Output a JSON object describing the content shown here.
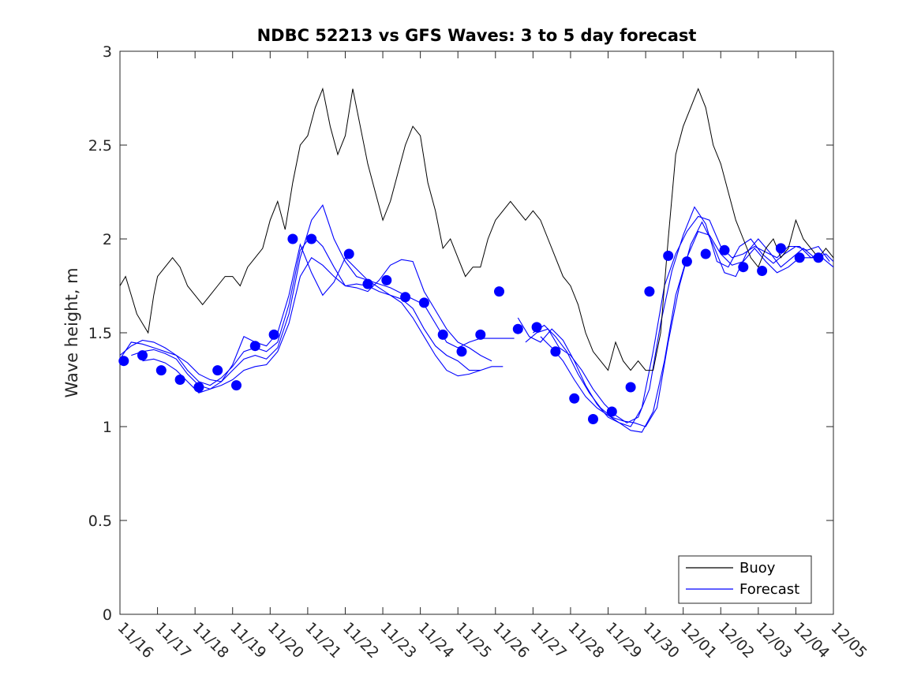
{
  "chart_data": {
    "type": "line",
    "title": "NDBC 52213 vs GFS Waves: 3 to 5 day forecast",
    "xlabel": "",
    "ylabel": "Wave height, m",
    "xlim": [
      0,
      19
    ],
    "ylim": [
      0,
      3
    ],
    "yticks": [
      0,
      0.5,
      1,
      1.5,
      2,
      2.5,
      3
    ],
    "ytick_labels": [
      "0",
      "0.5",
      "1",
      "1.5",
      "2",
      "2.5",
      "3"
    ],
    "x_tick_labels": [
      "11/16",
      "11/17",
      "11/18",
      "11/19",
      "11/20",
      "11/21",
      "11/22",
      "11/23",
      "11/24",
      "11/25",
      "11/26",
      "11/27",
      "11/28",
      "11/29",
      "11/30",
      "12/01",
      "12/02",
      "12/03",
      "12/04",
      "12/05"
    ],
    "legend": {
      "position": "bottom-right",
      "entries": [
        "Buoy",
        "Forecast"
      ]
    },
    "colors": {
      "buoy": "#000000",
      "forecast": "#0000ff"
    },
    "series": [
      {
        "name": "Buoy",
        "x": [
          0,
          0.15,
          0.3,
          0.45,
          0.6,
          0.75,
          0.9,
          1.0,
          1.2,
          1.4,
          1.6,
          1.8,
          2.0,
          2.2,
          2.4,
          2.6,
          2.8,
          3.0,
          3.2,
          3.4,
          3.6,
          3.8,
          4.0,
          4.2,
          4.4,
          4.6,
          4.8,
          5.0,
          5.2,
          5.4,
          5.6,
          5.8,
          6.0,
          6.2,
          6.4,
          6.6,
          6.8,
          7.0,
          7.2,
          7.4,
          7.6,
          7.8,
          8.0,
          8.2,
          8.4,
          8.6,
          8.8,
          9.0,
          9.2,
          9.4,
          9.6,
          9.8,
          10.0,
          10.2,
          10.4,
          10.6,
          10.8,
          11.0,
          11.2,
          11.4,
          11.6,
          11.8,
          12.0,
          12.2,
          12.4,
          12.6,
          12.8,
          13.0,
          13.2,
          13.4,
          13.6,
          13.8,
          14.0,
          14.2,
          14.4,
          14.6,
          14.8,
          15.0,
          15.2,
          15.4,
          15.6,
          15.8,
          16.0,
          16.2,
          16.4,
          16.6,
          16.8,
          17.0,
          17.2,
          17.4,
          17.6,
          17.8,
          18.0,
          18.2,
          18.4,
          18.6,
          18.8,
          19.0
        ],
        "values": [
          1.75,
          1.8,
          1.7,
          1.6,
          1.55,
          1.5,
          1.7,
          1.8,
          1.85,
          1.9,
          1.85,
          1.75,
          1.7,
          1.65,
          1.7,
          1.75,
          1.8,
          1.8,
          1.75,
          1.85,
          1.9,
          1.95,
          2.1,
          2.2,
          2.05,
          2.3,
          2.5,
          2.55,
          2.7,
          2.8,
          2.6,
          2.45,
          2.55,
          2.8,
          2.6,
          2.4,
          2.25,
          2.1,
          2.2,
          2.35,
          2.5,
          2.6,
          2.55,
          2.3,
          2.15,
          1.95,
          2.0,
          1.9,
          1.8,
          1.85,
          1.85,
          2.0,
          2.1,
          2.15,
          2.2,
          2.15,
          2.1,
          2.15,
          2.1,
          2.0,
          1.9,
          1.8,
          1.75,
          1.65,
          1.5,
          1.4,
          1.35,
          1.3,
          1.45,
          1.35,
          1.3,
          1.35,
          1.3,
          1.3,
          1.5,
          2.0,
          2.45,
          2.6,
          2.7,
          2.8,
          2.7,
          2.5,
          2.4,
          2.25,
          2.1,
          2.0,
          1.9,
          1.85,
          1.95,
          2.0,
          1.9,
          1.95,
          2.1,
          2.0,
          1.95,
          1.9,
          1.95,
          1.9
        ]
      },
      {
        "name": "Forecast",
        "points_x": [
          0.1,
          0.6,
          1.1,
          1.6,
          2.1,
          2.6,
          3.1,
          3.6,
          4.1,
          4.6,
          5.1,
          6.1,
          6.6,
          7.1,
          7.6,
          8.1,
          8.6,
          9.1,
          9.6,
          10.1,
          10.6,
          11.1,
          11.6,
          12.1,
          12.6,
          13.1,
          13.6,
          14.1,
          14.6,
          15.1,
          15.6,
          16.1,
          16.6,
          17.1,
          17.6,
          18.1,
          18.6
        ],
        "points_y": [
          1.35,
          1.38,
          1.3,
          1.25,
          1.21,
          1.3,
          1.22,
          1.43,
          1.49,
          2.0,
          2.0,
          1.92,
          1.76,
          1.78,
          1.69,
          1.66,
          1.49,
          1.4,
          1.49,
          1.72,
          1.52,
          1.53,
          1.4,
          1.15,
          1.04,
          1.08,
          1.21,
          1.72,
          1.91,
          1.88,
          1.92,
          1.94,
          1.85,
          1.83,
          1.95,
          1.9,
          1.9
        ],
        "runs": [
          {
            "x": [
              0.0,
              0.3,
              0.6,
              0.9,
              1.2,
              1.5,
              1.8,
              2.1,
              2.4,
              2.7,
              3.0,
              3.3,
              3.6,
              3.9,
              4.2,
              4.5,
              4.8,
              5.1,
              5.4,
              5.7,
              6.0,
              6.3,
              6.6,
              6.9,
              7.2,
              7.5,
              7.8,
              8.1,
              8.4,
              8.7,
              9.0,
              9.3,
              9.6,
              9.9,
              10.2,
              10.5
            ],
            "values": [
              1.36,
              1.45,
              1.44,
              1.42,
              1.4,
              1.38,
              1.34,
              1.28,
              1.25,
              1.24,
              1.33,
              1.48,
              1.45,
              1.43,
              1.5,
              1.7,
              1.97,
              1.82,
              1.7,
              1.77,
              1.9,
              1.84,
              1.78,
              1.76,
              1.74,
              1.71,
              1.68,
              1.65,
              1.55,
              1.45,
              1.42,
              1.45,
              1.47,
              1.47,
              1.47,
              1.47
            ]
          },
          {
            "x": [
              0.0,
              0.3,
              0.6,
              0.9,
              1.2,
              1.5,
              1.8,
              2.1,
              2.4,
              2.7,
              3.0,
              3.3,
              3.6,
              3.9,
              4.2,
              4.5,
              4.8,
              5.1,
              5.4,
              5.7,
              6.0,
              6.3,
              6.6,
              6.9,
              7.2,
              7.5,
              7.8,
              8.1,
              8.4,
              8.7,
              9.0,
              9.3,
              9.6,
              9.9
            ],
            "values": [
              1.38,
              1.43,
              1.46,
              1.45,
              1.42,
              1.38,
              1.3,
              1.24,
              1.22,
              1.26,
              1.32,
              1.4,
              1.42,
              1.4,
              1.45,
              1.65,
              1.94,
              2.02,
              1.96,
              1.85,
              1.75,
              1.74,
              1.72,
              1.78,
              1.86,
              1.89,
              1.88,
              1.72,
              1.62,
              1.52,
              1.45,
              1.42,
              1.38,
              1.35
            ]
          },
          {
            "x": [
              0.3,
              0.6,
              0.9,
              1.2,
              1.5,
              1.8,
              2.1,
              2.4,
              2.7,
              3.0,
              3.3,
              3.6,
              3.9,
              4.2,
              4.5,
              4.8,
              5.1,
              5.4,
              5.7,
              6.0,
              6.3,
              6.6,
              6.9,
              7.2,
              7.5,
              7.8,
              8.1,
              8.4,
              8.7,
              9.0,
              9.3,
              9.6
            ],
            "values": [
              1.38,
              1.4,
              1.41,
              1.39,
              1.36,
              1.28,
              1.22,
              1.2,
              1.24,
              1.3,
              1.36,
              1.38,
              1.36,
              1.42,
              1.6,
              1.9,
              2.1,
              2.18,
              2.0,
              1.88,
              1.8,
              1.78,
              1.74,
              1.7,
              1.68,
              1.63,
              1.52,
              1.43,
              1.38,
              1.35,
              1.3,
              1.3
            ]
          },
          {
            "x": [
              0.6,
              0.9,
              1.2,
              1.5,
              1.8,
              2.1,
              2.4,
              2.7,
              3.0,
              3.3,
              3.6,
              3.9,
              4.2,
              4.5,
              4.8,
              5.1,
              5.4,
              5.7,
              6.0,
              6.3,
              6.6,
              6.9,
              7.2,
              7.5,
              7.8,
              8.1,
              8.4,
              8.7,
              9.0,
              9.3,
              9.6,
              9.9,
              10.2
            ],
            "values": [
              1.35,
              1.36,
              1.34,
              1.3,
              1.24,
              1.18,
              1.2,
              1.22,
              1.25,
              1.3,
              1.32,
              1.33,
              1.4,
              1.55,
              1.8,
              1.9,
              1.86,
              1.8,
              1.75,
              1.76,
              1.75,
              1.72,
              1.7,
              1.66,
              1.58,
              1.48,
              1.38,
              1.3,
              1.27,
              1.28,
              1.3,
              1.32,
              1.32
            ]
          },
          {
            "x": [
              10.6,
              10.9,
              11.2,
              11.5,
              11.8,
              12.1,
              12.4,
              12.7,
              13.0,
              13.3,
              13.6,
              13.9,
              14.2,
              14.5,
              14.8,
              15.1,
              15.4,
              15.7,
              16.0,
              16.3,
              16.6,
              16.9,
              17.2,
              17.5,
              17.8,
              18.1,
              18.4,
              18.7,
              19.0
            ],
            "values": [
              1.58,
              1.48,
              1.45,
              1.52,
              1.46,
              1.35,
              1.22,
              1.12,
              1.05,
              1.02,
              1.0,
              1.1,
              1.4,
              1.75,
              1.92,
              2.04,
              2.12,
              2.1,
              1.96,
              1.9,
              1.92,
              1.96,
              1.93,
              1.9,
              1.96,
              1.96,
              1.9,
              1.9,
              1.85
            ]
          },
          {
            "x": [
              10.8,
              11.1,
              11.4,
              11.7,
              12.0,
              12.3,
              12.6,
              12.9,
              13.2,
              13.5,
              13.8,
              14.1,
              14.4,
              14.7,
              15.0,
              15.3,
              15.6,
              15.9,
              16.2,
              16.5,
              16.8,
              17.1,
              17.4,
              17.7,
              18.0,
              18.3,
              18.6,
              18.9
            ],
            "values": [
              1.45,
              1.5,
              1.52,
              1.42,
              1.38,
              1.3,
              1.2,
              1.12,
              1.06,
              1.02,
              1.05,
              1.2,
              1.55,
              1.83,
              2.02,
              2.17,
              2.08,
              1.88,
              1.85,
              1.96,
              2.0,
              1.92,
              1.87,
              1.92,
              1.96,
              1.94,
              1.96,
              1.88
            ]
          },
          {
            "x": [
              11.0,
              11.3,
              11.6,
              11.9,
              12.2,
              12.5,
              12.8,
              13.1,
              13.4,
              13.7,
              14.0,
              14.3,
              14.6,
              14.9,
              15.2,
              15.5,
              15.8,
              16.1,
              16.4,
              16.7,
              17.0,
              17.3,
              17.6,
              17.9,
              18.2,
              18.5,
              18.8,
              19.0
            ],
            "values": [
              1.5,
              1.54,
              1.48,
              1.4,
              1.28,
              1.18,
              1.1,
              1.05,
              1.03,
              1.02,
              1.0,
              1.1,
              1.45,
              1.75,
              1.97,
              2.09,
              1.97,
              1.82,
              1.8,
              1.93,
              2.0,
              1.93,
              1.85,
              1.9,
              1.95,
              1.9,
              1.92,
              1.88
            ]
          },
          {
            "x": [
              11.2,
              11.5,
              11.8,
              12.1,
              12.4,
              12.7,
              13.0,
              13.3,
              13.6,
              13.9,
              14.2,
              14.5,
              14.8,
              15.1,
              15.4,
              15.7,
              16.0,
              16.3,
              16.6,
              16.9,
              17.2,
              17.5,
              17.8,
              18.1,
              18.4,
              18.7
            ],
            "values": [
              1.48,
              1.42,
              1.35,
              1.25,
              1.16,
              1.1,
              1.06,
              1.02,
              0.98,
              0.97,
              1.08,
              1.35,
              1.7,
              1.9,
              2.04,
              2.02,
              1.92,
              1.86,
              1.88,
              1.95,
              1.88,
              1.82,
              1.85,
              1.9,
              1.9,
              1.92
            ]
          }
        ]
      }
    ]
  }
}
